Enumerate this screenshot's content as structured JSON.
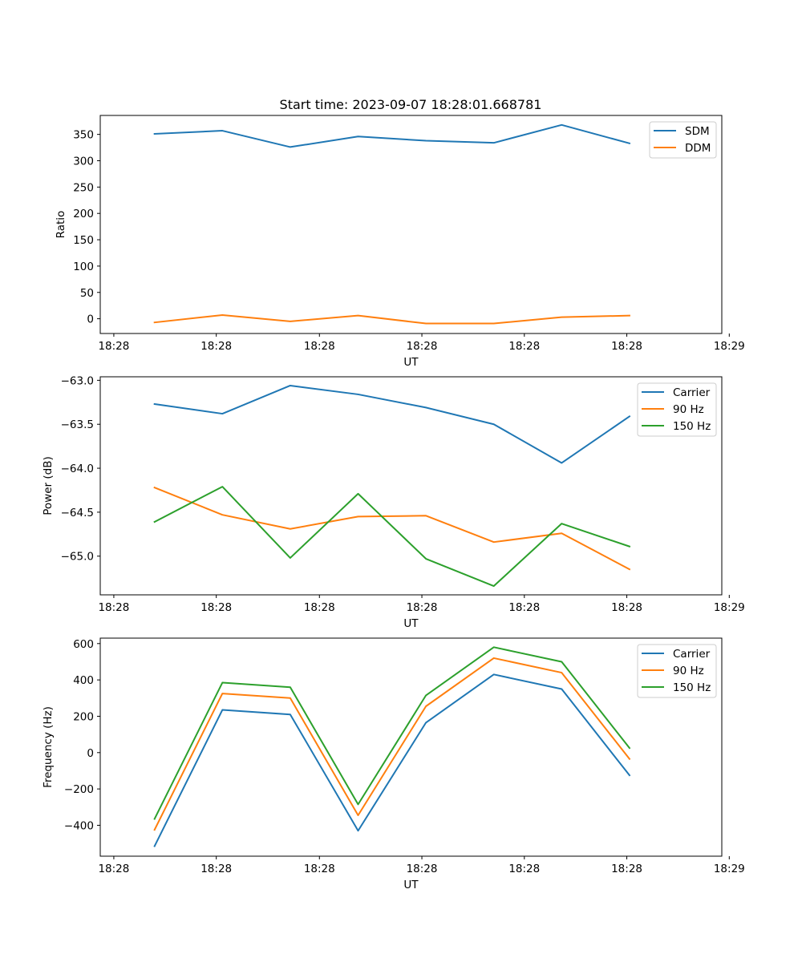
{
  "title": "Start time: 2023-09-07 18:28:01.668781",
  "charts": [
    {
      "type": "line",
      "xlabel": "UT",
      "ylabel": "Ratio",
      "xticks": [
        "18:28",
        "18:28",
        "18:28",
        "18:28",
        "18:28",
        "18:28",
        "18:29"
      ],
      "yticks": [
        "0",
        "50",
        "100",
        "150",
        "200",
        "250",
        "300",
        "350"
      ]
    },
    {
      "type": "line",
      "xlabel": "UT",
      "ylabel": "Power (dB)",
      "xticks": [
        "18:28",
        "18:28",
        "18:28",
        "18:28",
        "18:28",
        "18:28",
        "18:29"
      ],
      "yticks": [
        "−65.0",
        "−64.5",
        "−64.0",
        "−63.5",
        "−63.0"
      ]
    },
    {
      "type": "line",
      "xlabel": "UT",
      "ylabel": "Frequency (Hz)",
      "xticks": [
        "18:28",
        "18:28",
        "18:28",
        "18:28",
        "18:28",
        "18:28",
        "18:29"
      ],
      "yticks": [
        "−400",
        "−200",
        "0",
        "200",
        "400",
        "600"
      ]
    }
  ],
  "chart_data": [
    {
      "type": "line",
      "title": "Start time: 2023-09-07 18:28:01.668781",
      "xlabel": "UT",
      "ylabel": "Ratio",
      "x": [
        1,
        2,
        3,
        4,
        5,
        6,
        7,
        8
      ],
      "xlim": [
        0.2,
        9.36
      ],
      "ylim": [
        -28,
        386
      ],
      "ytick_values": [
        0,
        50,
        100,
        150,
        200,
        250,
        300,
        350
      ],
      "xtick_values": [
        0.4,
        1.91,
        3.43,
        4.94,
        6.45,
        7.96,
        9.47
      ],
      "series": [
        {
          "name": "SDM",
          "color": "#1f77b4",
          "values": [
            351,
            357,
            326,
            346,
            338,
            334,
            368,
            333
          ]
        },
        {
          "name": "DDM",
          "color": "#ff7f0e",
          "values": [
            -7,
            7,
            -5,
            6,
            -9,
            -9,
            3,
            6
          ]
        }
      ]
    },
    {
      "type": "line",
      "title": "",
      "xlabel": "UT",
      "ylabel": "Power (dB)",
      "x": [
        1,
        2,
        3,
        4,
        5,
        6,
        7,
        8
      ],
      "xlim": [
        0.2,
        9.36
      ],
      "ylim": [
        -65.44,
        -62.96
      ],
      "ytick_values": [
        -65.0,
        -64.5,
        -64.0,
        -63.5,
        -63.0
      ],
      "xtick_values": [
        0.4,
        1.91,
        3.43,
        4.94,
        6.45,
        7.96,
        9.47
      ],
      "series": [
        {
          "name": "Carrier",
          "color": "#1f77b4",
          "values": [
            -63.27,
            -63.38,
            -63.06,
            -63.16,
            -63.31,
            -63.5,
            -63.94,
            -63.41
          ]
        },
        {
          "name": "90 Hz",
          "color": "#ff7f0e",
          "values": [
            -64.22,
            -64.53,
            -64.69,
            -64.55,
            -64.54,
            -64.84,
            -64.74,
            -65.15
          ]
        },
        {
          "name": "150 Hz",
          "color": "#2ca02c",
          "values": [
            -64.61,
            -64.21,
            -65.02,
            -64.29,
            -65.03,
            -65.34,
            -64.63,
            -64.89
          ]
        }
      ]
    },
    {
      "type": "line",
      "title": "",
      "xlabel": "UT",
      "ylabel": "Frequency (Hz)",
      "x": [
        1,
        2,
        3,
        4,
        5,
        6,
        7,
        8
      ],
      "xlim": [
        0.2,
        9.36
      ],
      "ylim": [
        -570,
        630
      ],
      "ytick_values": [
        -400,
        -200,
        0,
        200,
        400,
        600
      ],
      "xtick_values": [
        0.4,
        1.91,
        3.43,
        4.94,
        6.45,
        7.96,
        9.47
      ],
      "series": [
        {
          "name": "Carrier",
          "color": "#1f77b4",
          "values": [
            -515,
            235,
            210,
            -430,
            165,
            430,
            350,
            -125
          ]
        },
        {
          "name": "90 Hz",
          "color": "#ff7f0e",
          "values": [
            -425,
            325,
            300,
            -345,
            255,
            520,
            440,
            -35
          ]
        },
        {
          "name": "150 Hz",
          "color": "#2ca02c",
          "values": [
            -365,
            385,
            360,
            -285,
            315,
            580,
            500,
            25
          ]
        }
      ]
    }
  ]
}
